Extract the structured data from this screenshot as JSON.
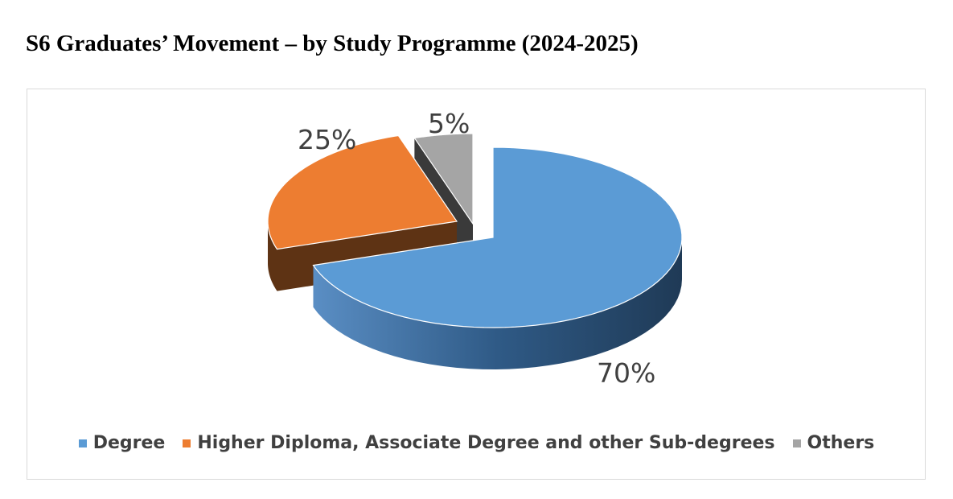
{
  "title": "S6 Graduates’ Movement – by Study Programme (2024-2025)",
  "chart_data": {
    "type": "pie",
    "style": "3d-exploded",
    "title": "S6 Graduates’ Movement – by Study Programme (2024-2025)",
    "legend_position": "bottom",
    "slices": [
      {
        "name": "Degree",
        "value": 70,
        "label": "70%",
        "color": "#5b9bd5"
      },
      {
        "name": "Higher Diploma, Associate Degree and other Sub-degrees",
        "value": 25,
        "label": "25%",
        "color": "#ed7d31"
      },
      {
        "name": "Others",
        "value": 5,
        "label": "5%",
        "color": "#a5a5a5"
      }
    ]
  }
}
